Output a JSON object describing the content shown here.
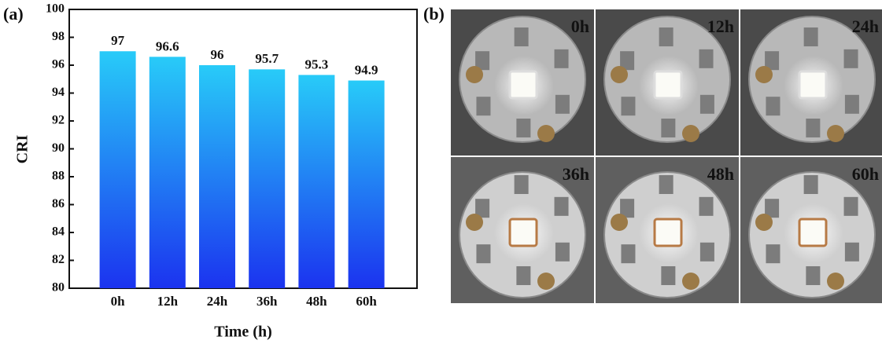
{
  "chart_data": {
    "type": "bar",
    "panel_label": "(a)",
    "categories": [
      "0h",
      "12h",
      "24h",
      "36h",
      "48h",
      "60h"
    ],
    "values": [
      97,
      96.6,
      96,
      95.7,
      95.3,
      94.9
    ],
    "gradient": [
      "#28cbf8",
      "#1b33ef"
    ],
    "xlabel": "Time (h)",
    "ylabel": "CRI",
    "ylim": [
      80,
      100
    ],
    "yticks": [
      80,
      82,
      84,
      86,
      88,
      90,
      92,
      94,
      96,
      98,
      100
    ]
  },
  "photos": {
    "panel_label": "(b)",
    "labels": [
      "0h",
      "12h",
      "24h",
      "36h",
      "48h",
      "60h"
    ]
  }
}
